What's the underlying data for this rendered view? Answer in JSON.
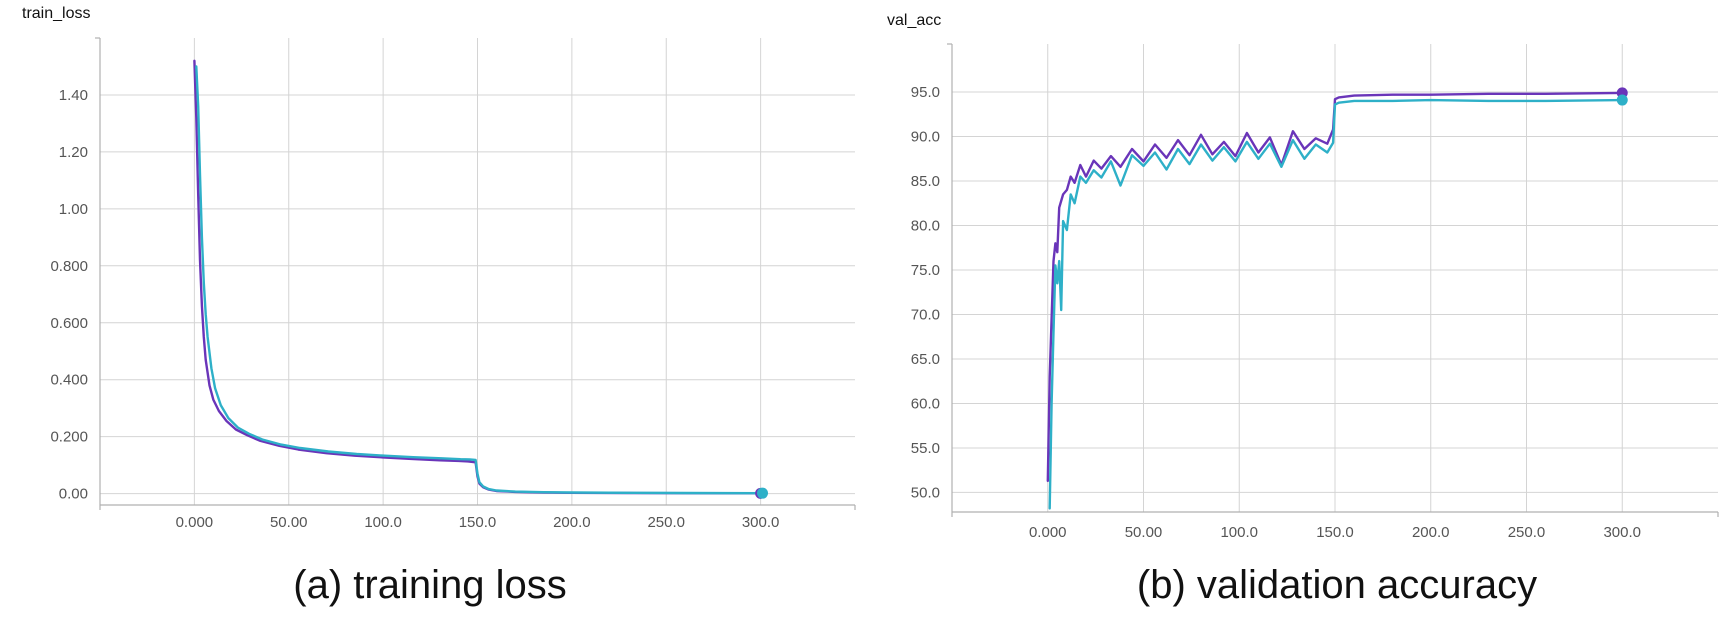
{
  "colors": {
    "series_purple": "#6a35b9",
    "series_cyan": "#2eb0c8",
    "grid": "#d4d4d4",
    "axis": "#b0b0b0"
  },
  "chart_data": [
    {
      "type": "line",
      "title": "train_loss",
      "caption": "(a) training loss",
      "xlim": [
        -50,
        350
      ],
      "ylim": [
        -0.04,
        1.6
      ],
      "grid": true,
      "x_ticks": [
        {
          "value": 0,
          "label": "0.000"
        },
        {
          "value": 50,
          "label": "50.00"
        },
        {
          "value": 100,
          "label": "100.0"
        },
        {
          "value": 150,
          "label": "150.0"
        },
        {
          "value": 200,
          "label": "200.0"
        },
        {
          "value": 250,
          "label": "250.0"
        },
        {
          "value": 300,
          "label": "300.0"
        }
      ],
      "y_ticks": [
        {
          "value": 0.0,
          "label": "0.00"
        },
        {
          "value": 0.2,
          "label": "0.200"
        },
        {
          "value": 0.4,
          "label": "0.400"
        },
        {
          "value": 0.6,
          "label": "0.600"
        },
        {
          "value": 0.8,
          "label": "0.800"
        },
        {
          "value": 1.0,
          "label": "1.00"
        },
        {
          "value": 1.2,
          "label": "1.20"
        },
        {
          "value": 1.4,
          "label": "1.40"
        }
      ],
      "series": [
        {
          "color": "#6a35b9",
          "x": [
            0,
            1,
            2,
            3,
            4,
            5,
            6,
            8,
            10,
            13,
            17,
            22,
            28,
            35,
            45,
            55,
            70,
            85,
            100,
            115,
            130,
            140,
            145,
            149,
            150,
            151,
            153,
            156,
            160,
            170,
            185,
            200,
            230,
            260,
            300
          ],
          "y": [
            1.52,
            1.32,
            1.05,
            0.82,
            0.66,
            0.55,
            0.47,
            0.38,
            0.33,
            0.29,
            0.255,
            0.225,
            0.205,
            0.185,
            0.168,
            0.155,
            0.142,
            0.133,
            0.127,
            0.122,
            0.117,
            0.115,
            0.113,
            0.11,
            0.06,
            0.035,
            0.022,
            0.014,
            0.009,
            0.006,
            0.004,
            0.003,
            0.002,
            0.0015,
            0.001
          ]
        },
        {
          "color": "#2eb0c8",
          "x": [
            1,
            2,
            3,
            4,
            5,
            6,
            7,
            9,
            11,
            14,
            18,
            23,
            29,
            36,
            46,
            56,
            71,
            86,
            101,
            116,
            131,
            141,
            146,
            149,
            150,
            151,
            153,
            156,
            160,
            170,
            185,
            200,
            230,
            260,
            301
          ],
          "y": [
            1.5,
            1.36,
            1.12,
            0.9,
            0.74,
            0.63,
            0.55,
            0.44,
            0.37,
            0.31,
            0.265,
            0.232,
            0.21,
            0.19,
            0.172,
            0.16,
            0.148,
            0.139,
            0.133,
            0.128,
            0.124,
            0.121,
            0.12,
            0.118,
            0.07,
            0.04,
            0.025,
            0.016,
            0.011,
            0.007,
            0.005,
            0.004,
            0.003,
            0.002,
            0.0015
          ]
        }
      ]
    },
    {
      "type": "line",
      "title": "val_acc",
      "caption": "(b) validation accuracy",
      "xlim": [
        -50,
        350
      ],
      "ylim": [
        47.8,
        100.4
      ],
      "grid": true,
      "x_ticks": [
        {
          "value": 0,
          "label": "0.000"
        },
        {
          "value": 50,
          "label": "50.00"
        },
        {
          "value": 100,
          "label": "100.0"
        },
        {
          "value": 150,
          "label": "150.0"
        },
        {
          "value": 200,
          "label": "200.0"
        },
        {
          "value": 250,
          "label": "250.0"
        },
        {
          "value": 300,
          "label": "300.0"
        }
      ],
      "y_ticks": [
        {
          "value": 50,
          "label": "50.0"
        },
        {
          "value": 55,
          "label": "55.0"
        },
        {
          "value": 60,
          "label": "60.0"
        },
        {
          "value": 65,
          "label": "65.0"
        },
        {
          "value": 70,
          "label": "70.0"
        },
        {
          "value": 75,
          "label": "75.0"
        },
        {
          "value": 80,
          "label": "80.0"
        },
        {
          "value": 85,
          "label": "85.0"
        },
        {
          "value": 90,
          "label": "90.0"
        },
        {
          "value": 95,
          "label": "95.0"
        }
      ],
      "series": [
        {
          "color": "#6a35b9",
          "x": [
            0,
            1,
            2,
            3,
            4,
            5,
            6,
            8,
            10,
            12,
            14,
            17,
            20,
            24,
            28,
            33,
            38,
            44,
            50,
            56,
            62,
            68,
            74,
            80,
            86,
            92,
            98,
            104,
            110,
            116,
            122,
            128,
            134,
            140,
            146,
            149,
            150,
            152,
            160,
            180,
            200,
            230,
            260,
            300
          ],
          "y": [
            51.3,
            63,
            69.5,
            76,
            78,
            77,
            82,
            83.5,
            84,
            85.5,
            84.8,
            86.8,
            85.5,
            87.3,
            86.4,
            87.8,
            86.6,
            88.6,
            87.2,
            89.1,
            87.6,
            89.6,
            87.9,
            90.2,
            88,
            89.4,
            87.8,
            90.4,
            88.2,
            89.9,
            86.8,
            90.6,
            88.6,
            89.8,
            89.2,
            90.8,
            94.2,
            94.4,
            94.6,
            94.7,
            94.7,
            94.8,
            94.8,
            94.9
          ]
        },
        {
          "color": "#2eb0c8",
          "x": [
            1,
            2,
            3,
            4,
            5,
            6,
            7,
            8,
            10,
            12,
            14,
            17,
            20,
            24,
            28,
            33,
            38,
            44,
            50,
            56,
            62,
            68,
            74,
            80,
            86,
            92,
            98,
            104,
            110,
            116,
            122,
            128,
            134,
            140,
            146,
            149,
            150,
            152,
            160,
            180,
            200,
            230,
            260,
            300
          ],
          "y": [
            48.2,
            60,
            68,
            75.5,
            73.5,
            76,
            70.5,
            80.5,
            79.5,
            83.5,
            82.5,
            85.5,
            84.8,
            86.2,
            85.4,
            87.2,
            84.5,
            87.9,
            86.7,
            88.2,
            86.3,
            88.6,
            86.9,
            89.1,
            87.3,
            88.8,
            87.2,
            89.4,
            87.5,
            89.2,
            86.6,
            89.6,
            87.5,
            89.1,
            88.2,
            89.3,
            93.6,
            93.8,
            94.0,
            94.0,
            94.1,
            94.0,
            94.0,
            94.1
          ]
        }
      ]
    }
  ]
}
